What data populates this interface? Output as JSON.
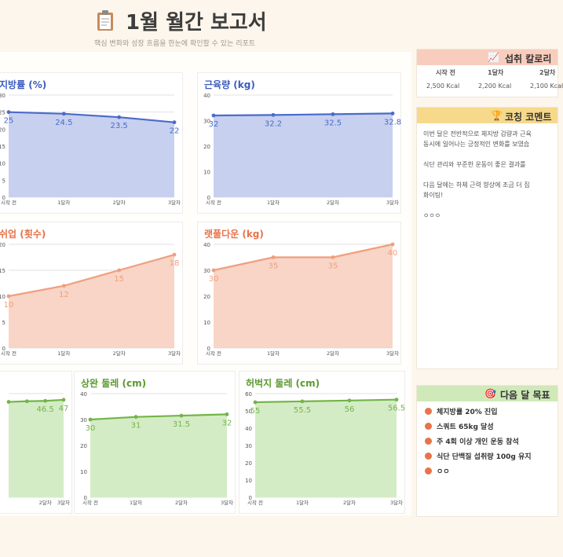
{
  "header": {
    "title": "1월 월간 보고서",
    "subtitle": "핵심 변화와 성장 흐름을 한눈에 확인할 수 있는 리포트",
    "icon": "clipboard-icon"
  },
  "colors": {
    "blue_line": "#4a6bc9",
    "blue_fill": "#c7d0ef",
    "orange_line": "#ef9f7e",
    "orange_fill": "#f8d5c6",
    "green_line": "#73b448",
    "green_fill": "#d4ecc6",
    "blue_title": "#3b5bbd",
    "orange_title": "#e8734a",
    "green_title": "#5a9a2e"
  },
  "chart_data": [
    {
      "id": "bodyfat",
      "type": "area",
      "title": "지방률 (%)",
      "categories": [
        "시작 전",
        "1달차",
        "2달차",
        "3달차"
      ],
      "values": [
        25,
        24.5,
        23.5,
        22
      ],
      "value_labels": [
        "25",
        "24.5",
        "23.5",
        "22"
      ],
      "ylim": [
        0,
        30
      ],
      "yticks": [
        "0",
        "5",
        "10",
        "15",
        "20",
        "25",
        "30"
      ],
      "theme": "blue"
    },
    {
      "id": "muscle",
      "type": "area",
      "title": "근육량 (kg)",
      "categories": [
        "시작 전",
        "1달차",
        "2달차",
        "3달차"
      ],
      "values": [
        32,
        32.2,
        32.5,
        32.8
      ],
      "value_labels": [
        "32",
        "32.2",
        "32.5",
        "32.8"
      ],
      "ylim": [
        0,
        40
      ],
      "yticks": [
        "0",
        "10",
        "20",
        "30",
        "40"
      ],
      "theme": "blue"
    },
    {
      "id": "pullup",
      "type": "area",
      "title": "쉬업 (횟수)",
      "categories": [
        "시작 전",
        "1달차",
        "2달차",
        "3달차"
      ],
      "values": [
        10,
        12,
        15,
        18
      ],
      "value_labels": [
        "10",
        "12",
        "15",
        "18"
      ],
      "ylim": [
        0,
        20
      ],
      "yticks": [
        "0",
        "5",
        "10",
        "15",
        "20"
      ],
      "theme": "orange"
    },
    {
      "id": "latpull",
      "type": "area",
      "title": "랫풀다운 (kg)",
      "categories": [
        "시작 전",
        "1달차",
        "2달차",
        "3달차"
      ],
      "values": [
        30,
        35,
        35,
        40
      ],
      "value_labels": [
        "30",
        "35",
        "35",
        "40"
      ],
      "ylim": [
        0,
        40
      ],
      "yticks": [
        "0",
        "10",
        "20",
        "30",
        "40"
      ],
      "theme": "orange"
    },
    {
      "id": "chest",
      "type": "area",
      "title": "",
      "categories": [
        "",
        "",
        "2달차",
        "3달차"
      ],
      "values": [
        46,
        46.3,
        46.5,
        47
      ],
      "value_labels": [
        "",
        "",
        "46.5",
        "47"
      ],
      "ylim": [
        0,
        50
      ],
      "yticks": [],
      "theme": "green"
    },
    {
      "id": "arm",
      "type": "area",
      "title": "상완 둘레 (cm)",
      "categories": [
        "시작 전",
        "1달차",
        "2달차",
        "3달차"
      ],
      "values": [
        30,
        31,
        31.5,
        32
      ],
      "value_labels": [
        "30",
        "31",
        "31.5",
        "32"
      ],
      "ylim": [
        0,
        40
      ],
      "yticks": [
        "0",
        "10",
        "20",
        "30",
        "40"
      ],
      "theme": "green"
    },
    {
      "id": "thigh",
      "type": "area",
      "title": "허벅지 둘레 (cm)",
      "categories": [
        "시작 전",
        "1달차",
        "2달차",
        "3달차"
      ],
      "values": [
        55,
        55.5,
        56,
        56.5
      ],
      "value_labels": [
        "55",
        "55.5",
        "56",
        "56.5"
      ],
      "ylim": [
        0,
        60
      ],
      "yticks": [
        "0",
        "10",
        "20",
        "30",
        "40",
        "50",
        "60"
      ],
      "theme": "green"
    }
  ],
  "calories": {
    "title": "섭취 칼로리",
    "icon": "chart-icon",
    "headers": [
      "시작 전",
      "1달차",
      "2달차"
    ],
    "values": [
      "2,500 Kcal",
      "2,200 Kcal",
      "2,100 Kcal"
    ]
  },
  "coaching": {
    "title": "코칭 코멘트",
    "icon": "trophy-icon",
    "lines": [
      "이번 달은 전반적으로 체지방 감량과 근육",
      "동시에 일어나는 긍정적인 변화를 보였습",
      "",
      "식단 관리와 꾸준한 운동이 좋은 결과를",
      "",
      "다음 달에는 하체 근력 향상에 조금 더 집",
      "화이팅!",
      "",
      "ㅇㅇㅇ"
    ]
  },
  "goals": {
    "title": "다음 달 목표",
    "icon": "target-icon",
    "items": [
      "체지방률 20% 진입",
      "스쿼트 65kg 달성",
      "주 4회 이상 개인 운동 참석",
      "식단 단백질 섭취량 100g 유지",
      "ㅇㅇ"
    ]
  }
}
